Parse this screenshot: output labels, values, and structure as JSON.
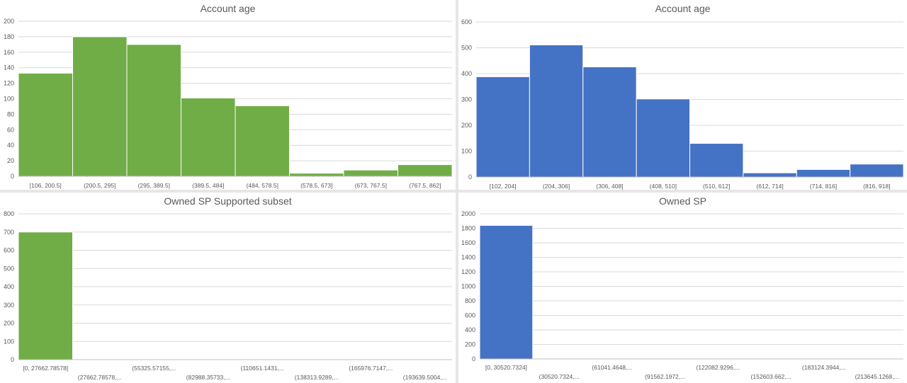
{
  "chart_data": [
    {
      "type": "bar",
      "title": "Account age",
      "color": "#70ad47",
      "categories": [
        "[106, 200.5]",
        "(200.5, 295]",
        "(295, 389.5]",
        "(389.5, 484]",
        "(484, 578.5]",
        "(578.5, 673]",
        "(673, 767.5]",
        "(767.5, 862]"
      ],
      "values": [
        133,
        180,
        170,
        101,
        91,
        4,
        8,
        15
      ],
      "ylim": [
        0,
        200
      ],
      "yticks": [
        0,
        20,
        40,
        60,
        80,
        100,
        120,
        140,
        160,
        180,
        200
      ],
      "grid": true
    },
    {
      "type": "bar",
      "title": "Account age",
      "color": "#4472c4",
      "categories": [
        "[102, 204]",
        "(204, 306]",
        "(306, 408]",
        "(408, 510]",
        "(510, 612]",
        "(612, 714]",
        "(714, 816]",
        "(816, 918]"
      ],
      "values": [
        388,
        511,
        426,
        302,
        130,
        16,
        29,
        50
      ],
      "ylim": [
        0,
        600
      ],
      "yticks": [
        0,
        100,
        200,
        300,
        400,
        500,
        600
      ],
      "grid": true
    },
    {
      "type": "bar",
      "title": "Owned SP Supported subset",
      "color": "#70ad47",
      "categories": [
        "[0, 27662.78578]",
        "(27662.78578,...",
        "(55325.57155,...",
        "(82988.35733,...",
        "(110651.1431,...",
        "(138313.9289,...",
        "(165976.7147,...",
        "(193639.5004,..."
      ],
      "values": [
        700,
        0,
        0,
        0,
        0,
        0,
        0,
        0
      ],
      "ylim": [
        0,
        800
      ],
      "yticks": [
        0,
        100,
        200,
        300,
        400,
        500,
        600,
        700,
        800
      ],
      "grid": true
    },
    {
      "type": "bar",
      "title": "Owned SP",
      "color": "#4472c4",
      "categories": [
        "[0, 30520.7324]",
        "(30520.7324,...",
        "(61041.4648,...",
        "(91562.1972,...",
        "(122082.9296,...",
        "(152603.662,...",
        "(183124.3944,...",
        "(213645.1268,..."
      ],
      "values": [
        1840,
        0,
        0,
        0,
        0,
        0,
        0,
        0
      ],
      "ylim": [
        0,
        2000
      ],
      "yticks": [
        0,
        200,
        400,
        600,
        800,
        1000,
        1200,
        1400,
        1600,
        1800,
        2000
      ],
      "grid": true
    }
  ]
}
